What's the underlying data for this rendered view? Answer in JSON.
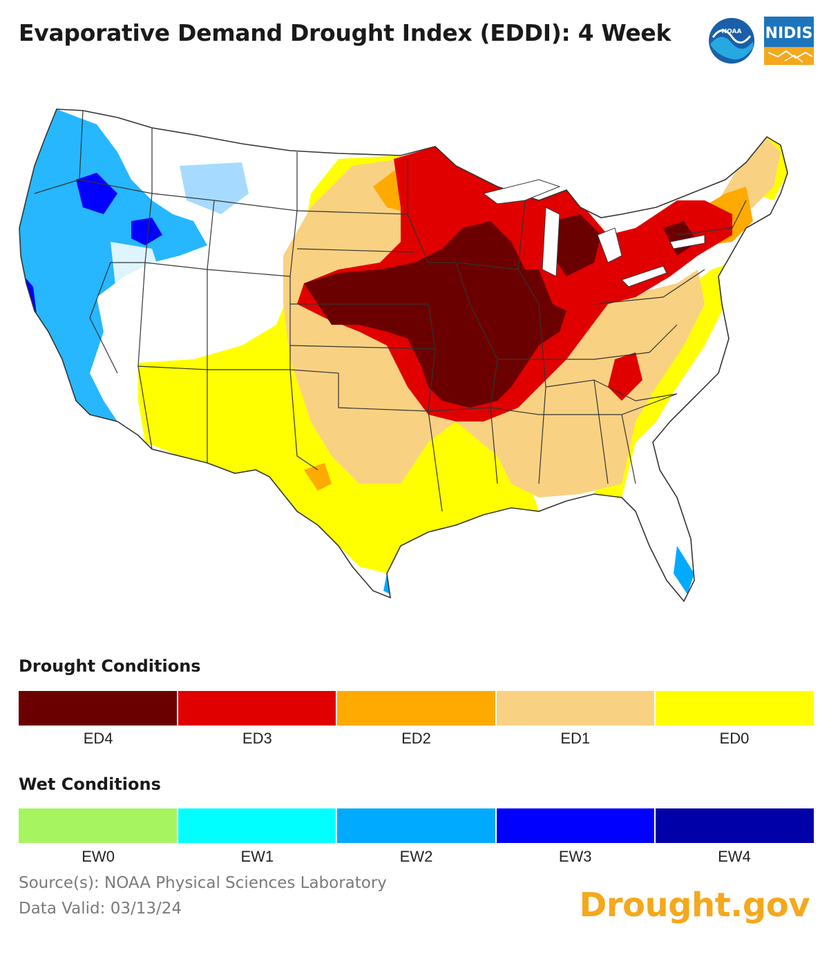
{
  "header": {
    "title": "Evaporative Demand Drought Index (EDDI): 4 Week",
    "noaa_logo_text": "NOAA",
    "nidis_logo_text": "NIDIS"
  },
  "map": {
    "region": "Contiguous United States",
    "colors": {
      "ED4": "#6b0000",
      "ED3": "#e00000",
      "ED2": "#ffaa00",
      "ED1": "#f9d182",
      "ED0": "#ffff00",
      "EW0": "#a6f560",
      "EW1": "#00ffff",
      "EW2": "#00aaff",
      "EW3": "#0000ff",
      "EW4": "#0000a8",
      "state_border": "#333333"
    }
  },
  "legend": {
    "drought_heading": "Drought Conditions",
    "drought": [
      {
        "label": "ED4",
        "color": "#6b0000"
      },
      {
        "label": "ED3",
        "color": "#e00000"
      },
      {
        "label": "ED2",
        "color": "#ffaa00"
      },
      {
        "label": "ED1",
        "color": "#f9d182"
      },
      {
        "label": "ED0",
        "color": "#ffff00"
      }
    ],
    "wet_heading": "Wet Conditions",
    "wet": [
      {
        "label": "EW0",
        "color": "#a6f560"
      },
      {
        "label": "EW1",
        "color": "#00ffff"
      },
      {
        "label": "EW2",
        "color": "#00aaff"
      },
      {
        "label": "EW3",
        "color": "#0000ff"
      },
      {
        "label": "EW4",
        "color": "#0000a8"
      }
    ]
  },
  "footer": {
    "source": "Source(s): NOAA Physical Sciences Laboratory",
    "valid": "Data Valid: 03/13/24",
    "brand": "Drought.gov"
  }
}
